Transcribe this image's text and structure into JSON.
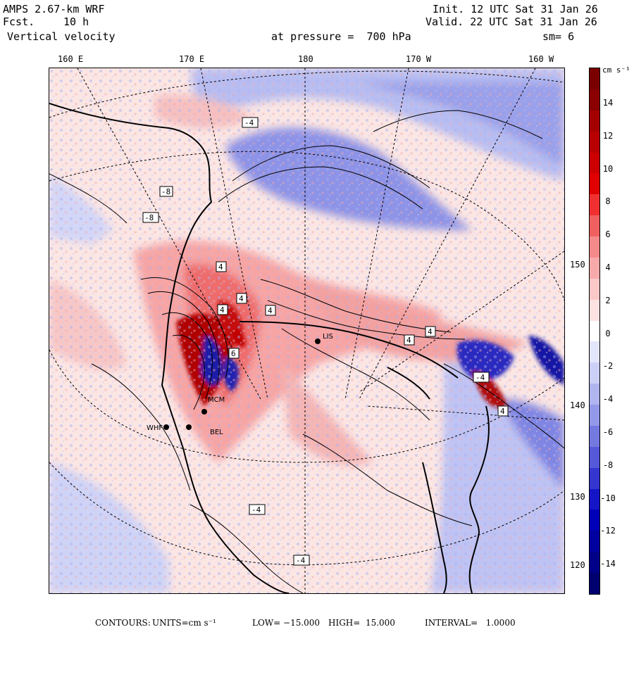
{
  "header": {
    "model": "AMPS 2.67-km WRF",
    "fcst_label": "Fcst.",
    "fcst_value": "10 h",
    "field": "Vertical velocity",
    "pressure_text": "at pressure =  700 hPa",
    "init": "Init. 12 UTC Sat 31 Jan 26",
    "valid": "Valid. 22 UTC Sat 31 Jan 26",
    "smoothing": "sm= 6"
  },
  "map": {
    "lon_labels": [
      "160 E",
      "170 E",
      "180",
      "170 W",
      "160 W"
    ],
    "lat_labels": [
      "150 W",
      "140 W",
      "130 W",
      "120 W"
    ],
    "stations": [
      "MCM",
      "WHF",
      "BEL",
      "LIS"
    ],
    "contour_labels": [
      "4",
      "4",
      "4",
      "4",
      "4",
      "4",
      "6",
      "-4",
      "-8",
      "-8",
      "-4",
      "-4",
      "-4",
      "4"
    ]
  },
  "colorbar": {
    "units_label": "cm s⁻¹",
    "ticks": [
      "14",
      "12",
      "10",
      "8",
      "6",
      "4",
      "2",
      "0",
      "-2",
      "-4",
      "-6",
      "-8",
      "-10",
      "-12",
      "-14"
    ],
    "colors": [
      "#7a0000",
      "#8b0000",
      "#a50000",
      "#b80000",
      "#cc0000",
      "#e00000",
      "#f03030",
      "#f06060",
      "#f58a8a",
      "#f8aaaa",
      "#fbc8c8",
      "#fde2e2",
      "#ffffff",
      "#e4e6fb",
      "#cdd0f6",
      "#b0b4ef",
      "#9398e8",
      "#7479e0",
      "#5558d8",
      "#3535d0",
      "#1515c8",
      "#0000b8",
      "#0000a0",
      "#000088",
      "#000070"
    ]
  },
  "footer": {
    "contours_label": "CONTOURS:",
    "units": "UNITS=cm s⁻¹",
    "low": "LOW= −15.000",
    "high": "HIGH=  15.000",
    "interval": "INTERVAL=   1.0000"
  }
}
